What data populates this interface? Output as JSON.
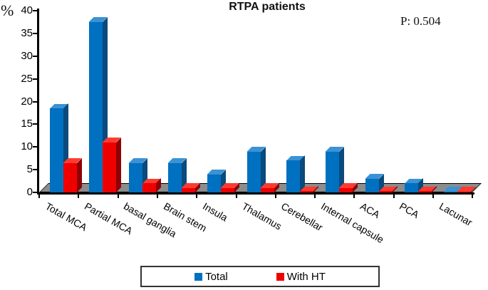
{
  "chart_data": {
    "type": "bar",
    "title": "RTPA patients",
    "annotation": "P: 0.504",
    "ylabel": "%",
    "xlabel": "",
    "ylim": [
      0,
      40
    ],
    "yticks": [
      0,
      5,
      10,
      15,
      20,
      25,
      30,
      35,
      40
    ],
    "grid": false,
    "legend_position": "bottom",
    "style": "3d-bars",
    "categories": [
      "Total MCA",
      "Partial MCA",
      "basal ganglia",
      "Brain stem",
      "Insula",
      "Thalamus",
      "Cerebellar",
      "Internal capsule",
      "ACA",
      "PCA",
      "Lacunar"
    ],
    "series": [
      {
        "name": "Total",
        "values": [
          18.5,
          37.5,
          6.5,
          6.5,
          4,
          9,
          7,
          9,
          3,
          2,
          0.2
        ],
        "colors": {
          "front": "#0070c0",
          "top": "#3b92d4",
          "side": "#0a4a7c"
        }
      },
      {
        "name": "With HT",
        "values": [
          6.5,
          11,
          2,
          1,
          1,
          1,
          0.3,
          1,
          0.3,
          0.3,
          0.2
        ],
        "colors": {
          "front": "#ee0000",
          "top": "#ff3b30",
          "side": "#8e0005"
        }
      }
    ],
    "axis_color": "#000000",
    "floor_color": "#8c8c8c"
  }
}
